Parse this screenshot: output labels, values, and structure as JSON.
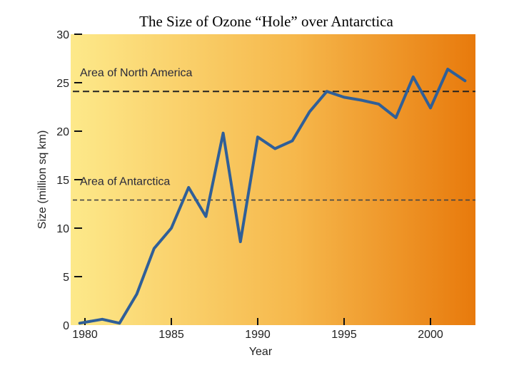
{
  "chart_data": {
    "type": "line",
    "title": "The Size of Ozone “Hole” over Antarctica",
    "xlabel": "Year",
    "ylabel": "Size (million sq km)",
    "xlim": [
      1980,
      2002.5
    ],
    "ylim": [
      0,
      30
    ],
    "xticks": [
      1980,
      1985,
      1990,
      1995,
      2000
    ],
    "yticks": [
      0,
      5,
      10,
      15,
      20,
      25,
      30
    ],
    "series": [
      {
        "color": "#2f5f98",
        "x": [
          1979.7,
          1981,
          1982,
          1983,
          1984,
          1985,
          1986,
          1987,
          1988,
          1989,
          1990,
          1991,
          1992,
          1993,
          1994,
          1995,
          1996,
          1997,
          1998,
          1999,
          2000,
          2001,
          2002
        ],
        "y": [
          0.2,
          0.6,
          0.2,
          3.2,
          7.9,
          10.0,
          14.2,
          11.2,
          19.8,
          8.6,
          19.4,
          18.2,
          19.0,
          22.0,
          24.1,
          23.5,
          23.2,
          22.8,
          21.4,
          25.6,
          22.4,
          26.4,
          25.2
        ]
      }
    ],
    "reference_lines": [
      {
        "label": "Area of North America",
        "y": 24.1,
        "color": "#222222"
      },
      {
        "label": "Area of Antarctica",
        "y": 12.9,
        "color": "#444444"
      }
    ],
    "background_gradient": [
      "#fde98a",
      "#f6b84c",
      "#e87a0c"
    ]
  }
}
